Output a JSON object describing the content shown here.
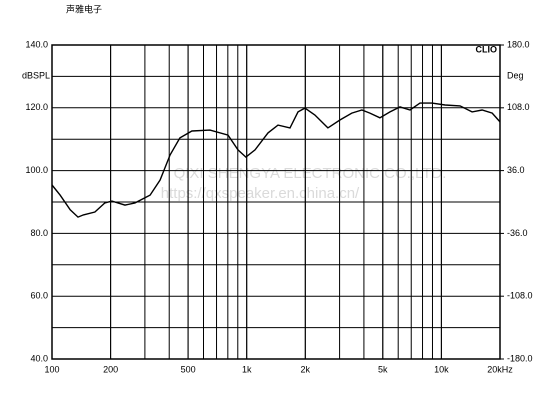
{
  "chart_data": {
    "type": "line",
    "title": "声雅电子",
    "brand": "CLIO",
    "y_label": "dBSPL",
    "y2_label": "Deg",
    "watermark": [
      "QIXI SHENGYA ELECTRONIC CO.,LTD.",
      "https://qxspeaker.en.china.cn/"
    ],
    "x_scale": "log",
    "grid": true,
    "xlim": [
      100,
      20000
    ],
    "xticks": [
      100,
      200,
      500,
      {
        "value": 1000,
        "label": "1k"
      },
      {
        "value": 2000,
        "label": "2k"
      },
      {
        "value": 5000,
        "label": "5k"
      },
      {
        "value": 10000,
        "label": "10k"
      },
      {
        "value": 20000,
        "label": "20kHz"
      }
    ],
    "ylim": [
      40,
      140
    ],
    "yticks": [
      {
        "value": 40,
        "label": "40.0"
      },
      {
        "value": 60,
        "label": "60.0"
      },
      {
        "value": 80,
        "label": "80.0"
      },
      {
        "value": 100,
        "label": "100.0"
      },
      {
        "value": 120,
        "label": "120.0"
      },
      {
        "value": 140,
        "label": "140.0"
      }
    ],
    "y2lim": [
      -180,
      180
    ],
    "y2ticks": [
      {
        "value": -180,
        "label": "-180.0"
      },
      {
        "value": -108,
        "label": "-108.0"
      },
      {
        "value": -36,
        "label": "-36.0"
      },
      {
        "value": 36,
        "label": "36.0"
      },
      {
        "value": 108,
        "label": "108.0"
      },
      {
        "value": 180,
        "label": "180.0"
      }
    ],
    "series": [
      {
        "name": "SPL",
        "color": "#000000",
        "x": [
          100,
          110,
          124,
          136,
          145,
          166,
          187,
          203,
          237,
          267,
          319,
          359,
          404,
          454,
          523,
          648,
          802,
          902,
          991,
          1103,
          1286,
          1448,
          1668,
          1834,
          1991,
          2240,
          2614,
          3011,
          3467,
          3905,
          4295,
          4833,
          5443,
          6126,
          6899,
          7762,
          8953,
          10450,
          12470,
          14380,
          16190,
          18230,
          20000
        ],
        "values": [
          95.4,
          92.2,
          87.5,
          85.2,
          85.9,
          86.8,
          89.7,
          90.3,
          89,
          89.7,
          92.2,
          97,
          105,
          110.4,
          112.6,
          112.9,
          111.3,
          106.6,
          104.3,
          106.6,
          112,
          114.5,
          113.6,
          118.7,
          119.9,
          117.7,
          113.6,
          116.1,
          118.3,
          119.3,
          118.3,
          116.8,
          118.7,
          120.3,
          119.3,
          121.5,
          121.5,
          120.9,
          120.6,
          118.7,
          119.3,
          118.3,
          115.5
        ]
      }
    ]
  }
}
